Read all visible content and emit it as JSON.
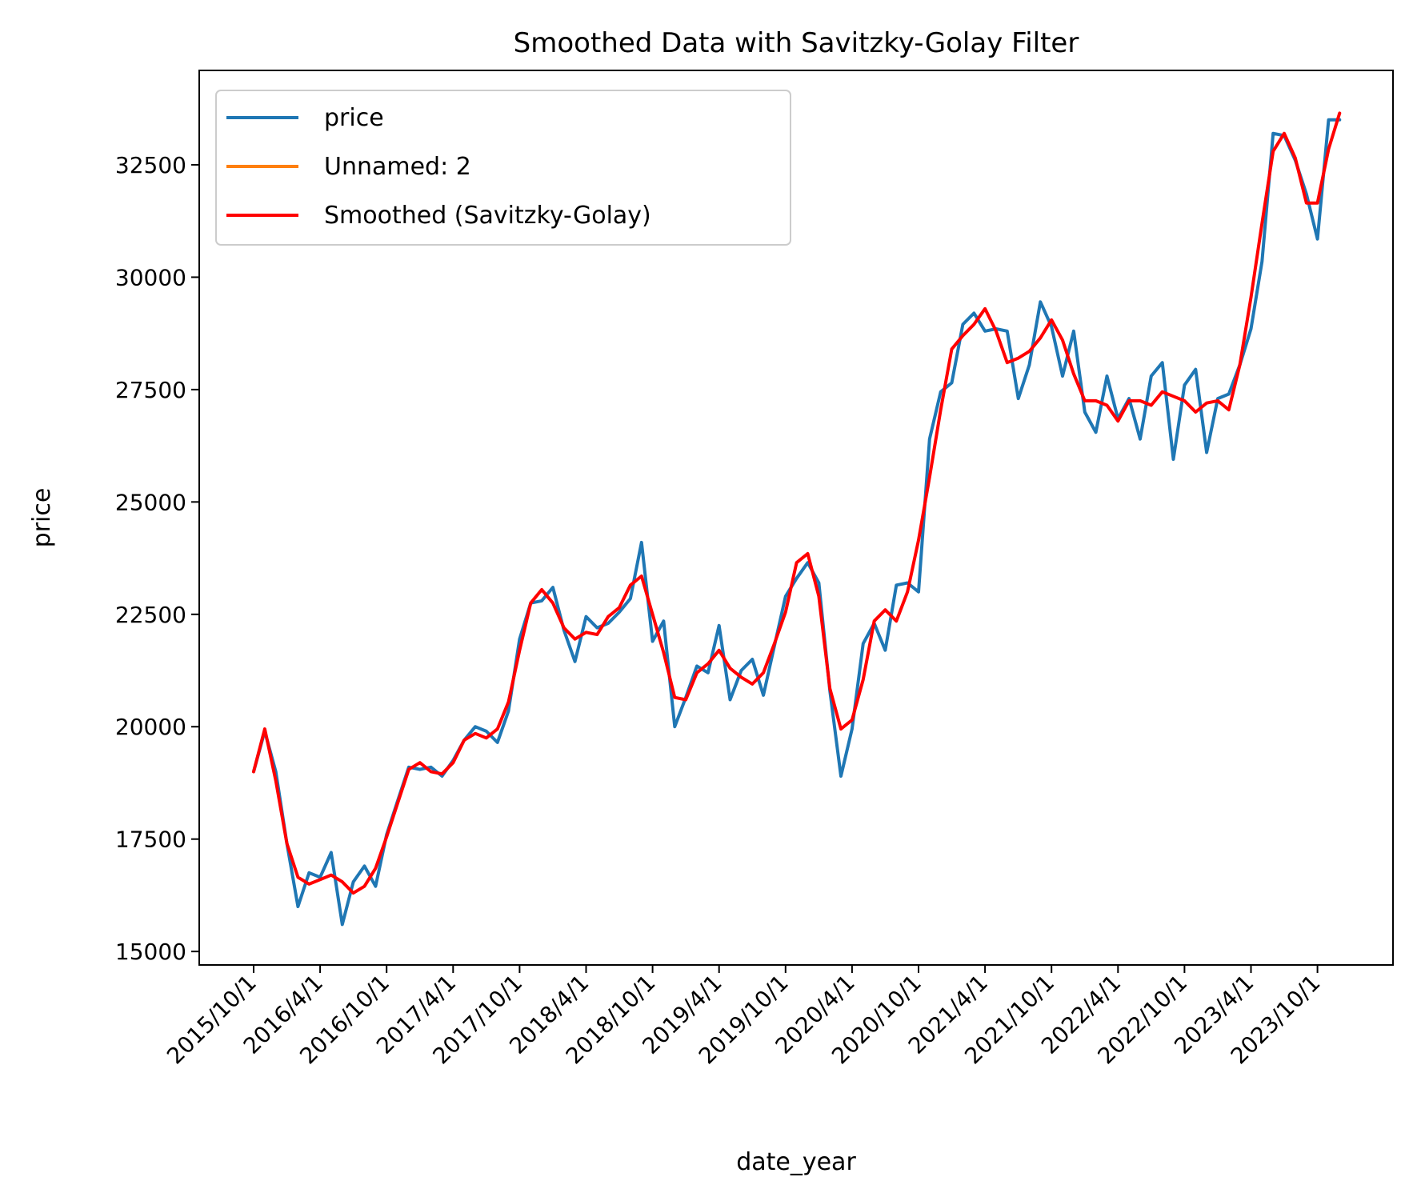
{
  "chart_data": {
    "type": "line",
    "title": "Smoothed Data with Savitzky-Golay Filter",
    "xlabel": "date_year",
    "ylabel": "price",
    "ylim": [
      14700,
      34600
    ],
    "y_ticks": [
      15000,
      17500,
      20000,
      22500,
      25000,
      27500,
      30000,
      32500
    ],
    "x_tick_labels": [
      "2015/10/1",
      "2016/4/1",
      "2016/10/1",
      "2017/4/1",
      "2017/10/1",
      "2018/4/1",
      "2018/10/1",
      "2019/4/1",
      "2019/10/1",
      "2020/4/1",
      "2020/10/1",
      "2021/4/1",
      "2021/10/1",
      "2022/4/1",
      "2022/10/1",
      "2023/4/1",
      "2023/10/1"
    ],
    "x_tick_every_n_points": 6,
    "grid": false,
    "legend_position": "top-left",
    "series": [
      {
        "name": "price",
        "color": "#1f77b4",
        "values": [
          19000,
          19900,
          19000,
          17400,
          16000,
          16750,
          16650,
          17200,
          15600,
          16550,
          16900,
          16450,
          17600,
          18350,
          19100,
          19050,
          19100,
          18900,
          19250,
          19700,
          20000,
          19900,
          19650,
          20350,
          21950,
          22750,
          22800,
          23100,
          22150,
          21450,
          22450,
          22200,
          22300,
          22550,
          22850,
          24100,
          21900,
          22350,
          20000,
          20650,
          21350,
          21200,
          22250,
          20600,
          21250,
          21500,
          20700,
          21800,
          22900,
          23300,
          23650,
          23200,
          20800,
          18900,
          19950,
          21850,
          22300,
          21700,
          23150,
          23200,
          23000,
          26400,
          27450,
          27650,
          28950,
          29200,
          28800,
          28850,
          28800,
          27300,
          28050,
          29450,
          28900,
          27800,
          28800,
          27000,
          26550,
          27800,
          26850,
          27300,
          26400,
          27800,
          28100,
          25950,
          27600,
          27950,
          26100,
          27300,
          27400,
          28050,
          28850,
          30350,
          33200,
          33150,
          32600,
          31850,
          30850,
          33500,
          33500
        ]
      },
      {
        "name": "Unnamed: 2",
        "color": "#ff7f0e",
        "values": []
      },
      {
        "name": "Smoothed (Savitzky-Golay)",
        "color": "#ff0000",
        "values": [
          19000,
          19950,
          18800,
          17400,
          16650,
          16500,
          16600,
          16700,
          16550,
          16300,
          16450,
          16850,
          17550,
          18300,
          19050,
          19200,
          19000,
          18950,
          19200,
          19700,
          19850,
          19750,
          19950,
          20550,
          21700,
          22750,
          23050,
          22750,
          22200,
          21950,
          22100,
          22050,
          22450,
          22650,
          23150,
          23350,
          22500,
          21650,
          20650,
          20600,
          21200,
          21400,
          21700,
          21300,
          21100,
          20950,
          21200,
          21850,
          22550,
          23650,
          23850,
          22900,
          20850,
          19950,
          20150,
          21050,
          22350,
          22600,
          22350,
          23000,
          24150,
          25550,
          27050,
          28400,
          28700,
          28950,
          29300,
          28800,
          28100,
          28200,
          28350,
          28650,
          29050,
          28600,
          27850,
          27250,
          27250,
          27150,
          26800,
          27250,
          27250,
          27150,
          27450,
          27350,
          27250,
          27000,
          27200,
          27250,
          27050,
          28050,
          29550,
          31200,
          32800,
          33200,
          32650,
          31650,
          31650,
          32850,
          33650
        ]
      }
    ]
  }
}
